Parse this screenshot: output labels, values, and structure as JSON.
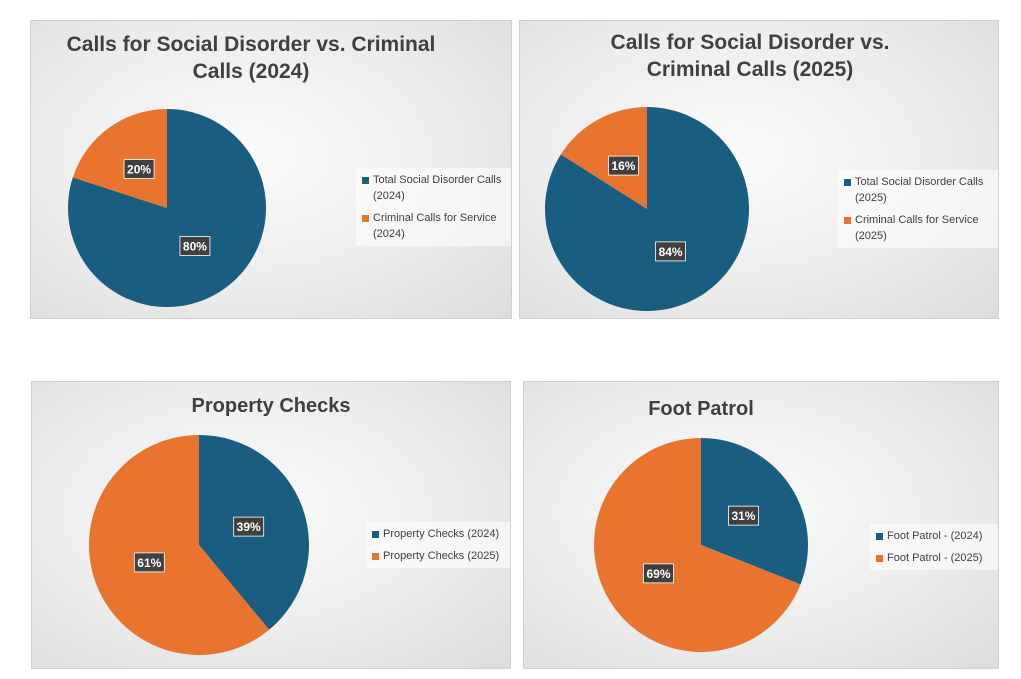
{
  "colors": {
    "blue": "#195d80",
    "orange": "#e8742f"
  },
  "chart_data": [
    {
      "type": "pie",
      "title_lines": [
        "Calls for Social Disorder vs. Criminal",
        "Calls (2024)"
      ],
      "slices": [
        {
          "name_lines": [
            "Total Social Disorder Calls",
            "(2024)"
          ],
          "value": 80,
          "label": "80%",
          "color": "#195d80"
        },
        {
          "name_lines": [
            "Criminal Calls for Service",
            "(2024)"
          ],
          "value": 20,
          "label": "20%",
          "color": "#e8742f"
        }
      ]
    },
    {
      "type": "pie",
      "title_lines": [
        "Calls for Social Disorder vs.",
        "Criminal Calls  (2025)"
      ],
      "slices": [
        {
          "name_lines": [
            "Total Social Disorder Calls",
            "(2025)"
          ],
          "value": 84,
          "label": "84%",
          "color": "#195d80"
        },
        {
          "name_lines": [
            "Criminal Calls for Service",
            "(2025)"
          ],
          "value": 16,
          "label": "16%",
          "color": "#e8742f"
        }
      ]
    },
    {
      "type": "pie",
      "title_lines": [
        "Property Checks"
      ],
      "slices": [
        {
          "name_lines": [
            "Property Checks (2024)"
          ],
          "value": 39,
          "label": "39%",
          "color": "#195d80"
        },
        {
          "name_lines": [
            "Property Checks (2025)"
          ],
          "value": 61,
          "label": "61%",
          "color": "#e8742f"
        }
      ]
    },
    {
      "type": "pie",
      "title_lines": [
        "Foot Patrol"
      ],
      "slices": [
        {
          "name_lines": [
            "Foot Patrol - (2024)"
          ],
          "value": 31,
          "label": "31%",
          "color": "#195d80"
        },
        {
          "name_lines": [
            "Foot Patrol - (2025)"
          ],
          "value": 69,
          "label": "69%",
          "color": "#e8742f"
        }
      ]
    }
  ]
}
